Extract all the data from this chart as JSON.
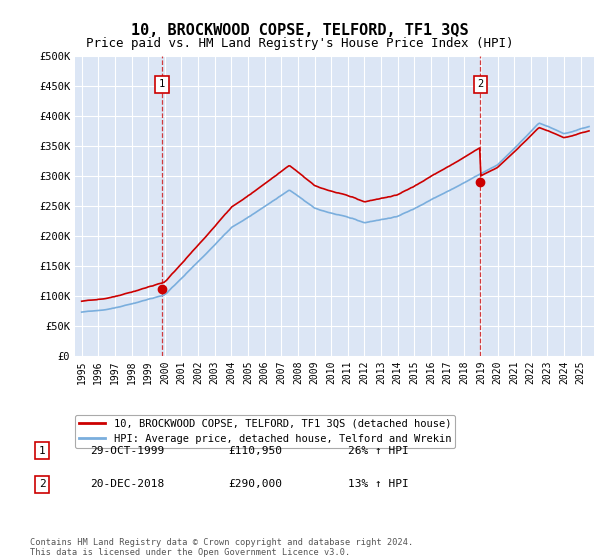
{
  "title": "10, BROCKWOOD COPSE, TELFORD, TF1 3QS",
  "subtitle": "Price paid vs. HM Land Registry's House Price Index (HPI)",
  "title_fontsize": 11,
  "subtitle_fontsize": 9,
  "ylim": [
    0,
    500000
  ],
  "yticks": [
    0,
    50000,
    100000,
    150000,
    200000,
    250000,
    300000,
    350000,
    400000,
    450000,
    500000
  ],
  "ytick_labels": [
    "£0",
    "£50K",
    "£100K",
    "£150K",
    "£200K",
    "£250K",
    "£300K",
    "£350K",
    "£400K",
    "£450K",
    "£500K"
  ],
  "background_color": "#dce6f5",
  "sale1_year": 1999.83,
  "sale1_price": 110950,
  "sale2_year": 2018.97,
  "sale2_price": 290000,
  "legend_entries": [
    {
      "label": "10, BROCKWOOD COPSE, TELFORD, TF1 3QS (detached house)",
      "color": "#cc0000"
    },
    {
      "label": "HPI: Average price, detached house, Telford and Wrekin",
      "color": "#7aaedd"
    }
  ],
  "table_rows": [
    {
      "num": "1",
      "date": "29-OCT-1999",
      "price": "£110,950",
      "hpi": "26% ↑ HPI"
    },
    {
      "num": "2",
      "date": "20-DEC-2018",
      "price": "£290,000",
      "hpi": "13% ↑ HPI"
    }
  ],
  "footer": "Contains HM Land Registry data © Crown copyright and database right 2024.\nThis data is licensed under the Open Government Licence v3.0.",
  "hpi_line_color": "#7aaedd",
  "price_line_color": "#cc0000"
}
